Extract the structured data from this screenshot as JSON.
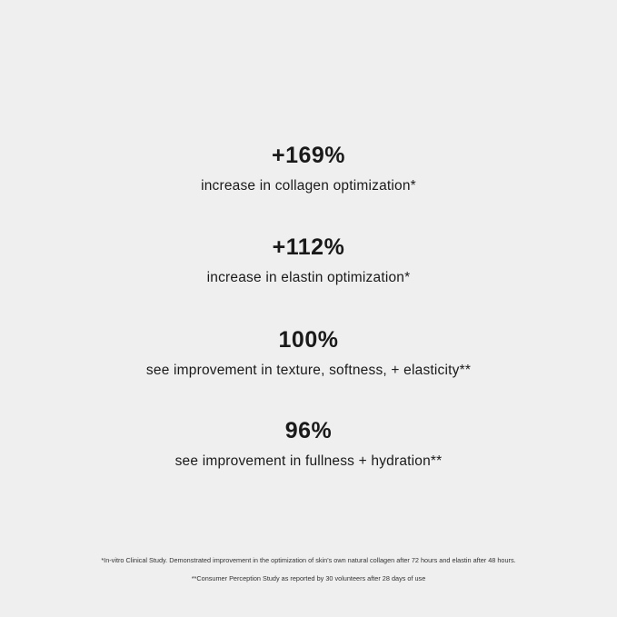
{
  "stats": [
    {
      "value": "+169%",
      "description": "increase in collagen optimization*"
    },
    {
      "value": "+112%",
      "description": "increase in elastin optimization*"
    },
    {
      "value": "100%",
      "description": "see improvement in texture, softness, + elasticity**"
    },
    {
      "value": "96%",
      "description": "see improvement in fullness + hydration**"
    }
  ],
  "footnotes": [
    "*In-vitro Clinical Study. Demonstrated improvement in the optimization of skin's own natural collagen after 72 hours and elastin after 48 hours.",
    "**Consumer Perception Study as reported by 30 volunteers after 28 days of use"
  ]
}
